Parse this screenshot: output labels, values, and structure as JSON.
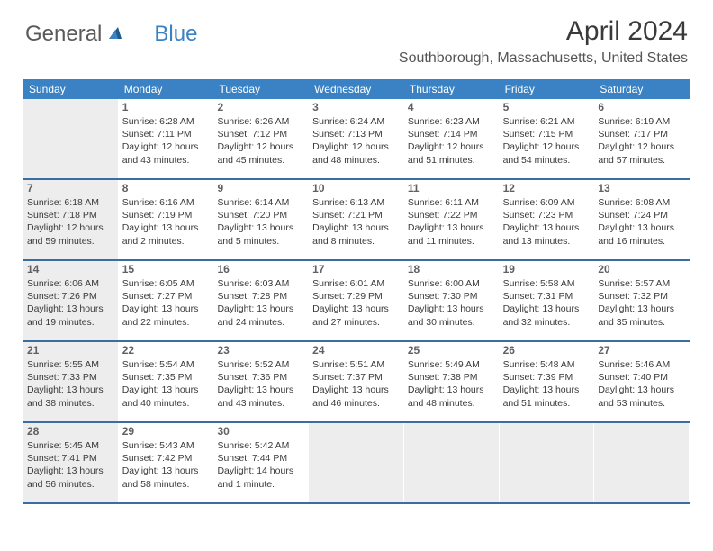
{
  "brand": {
    "general": "General",
    "blue": "Blue"
  },
  "title": "April 2024",
  "location": "Southborough, Massachusetts, United States",
  "colors": {
    "header_bg": "#3b82c4",
    "header_text": "#ffffff",
    "shaded_bg": "#ededed",
    "row_border": "#3b6ea0",
    "text": "#3a3a3a",
    "daynum": "#606060",
    "logo_gray": "#5a5a5a",
    "logo_blue": "#3b82c4"
  },
  "day_headers": [
    "Sunday",
    "Monday",
    "Tuesday",
    "Wednesday",
    "Thursday",
    "Friday",
    "Saturday"
  ],
  "weeks": [
    [
      {
        "num": "",
        "sunrise": "",
        "sunset": "",
        "daylight": "",
        "extra": "",
        "shaded": true
      },
      {
        "num": "1",
        "sunrise": "Sunrise: 6:28 AM",
        "sunset": "Sunset: 7:11 PM",
        "daylight": "Daylight: 12 hours",
        "extra": "and 43 minutes.",
        "shaded": false
      },
      {
        "num": "2",
        "sunrise": "Sunrise: 6:26 AM",
        "sunset": "Sunset: 7:12 PM",
        "daylight": "Daylight: 12 hours",
        "extra": "and 45 minutes.",
        "shaded": false
      },
      {
        "num": "3",
        "sunrise": "Sunrise: 6:24 AM",
        "sunset": "Sunset: 7:13 PM",
        "daylight": "Daylight: 12 hours",
        "extra": "and 48 minutes.",
        "shaded": false
      },
      {
        "num": "4",
        "sunrise": "Sunrise: 6:23 AM",
        "sunset": "Sunset: 7:14 PM",
        "daylight": "Daylight: 12 hours",
        "extra": "and 51 minutes.",
        "shaded": false
      },
      {
        "num": "5",
        "sunrise": "Sunrise: 6:21 AM",
        "sunset": "Sunset: 7:15 PM",
        "daylight": "Daylight: 12 hours",
        "extra": "and 54 minutes.",
        "shaded": false
      },
      {
        "num": "6",
        "sunrise": "Sunrise: 6:19 AM",
        "sunset": "Sunset: 7:17 PM",
        "daylight": "Daylight: 12 hours",
        "extra": "and 57 minutes.",
        "shaded": false
      }
    ],
    [
      {
        "num": "7",
        "sunrise": "Sunrise: 6:18 AM",
        "sunset": "Sunset: 7:18 PM",
        "daylight": "Daylight: 12 hours",
        "extra": "and 59 minutes.",
        "shaded": true
      },
      {
        "num": "8",
        "sunrise": "Sunrise: 6:16 AM",
        "sunset": "Sunset: 7:19 PM",
        "daylight": "Daylight: 13 hours",
        "extra": "and 2 minutes.",
        "shaded": false
      },
      {
        "num": "9",
        "sunrise": "Sunrise: 6:14 AM",
        "sunset": "Sunset: 7:20 PM",
        "daylight": "Daylight: 13 hours",
        "extra": "and 5 minutes.",
        "shaded": false
      },
      {
        "num": "10",
        "sunrise": "Sunrise: 6:13 AM",
        "sunset": "Sunset: 7:21 PM",
        "daylight": "Daylight: 13 hours",
        "extra": "and 8 minutes.",
        "shaded": false
      },
      {
        "num": "11",
        "sunrise": "Sunrise: 6:11 AM",
        "sunset": "Sunset: 7:22 PM",
        "daylight": "Daylight: 13 hours",
        "extra": "and 11 minutes.",
        "shaded": false
      },
      {
        "num": "12",
        "sunrise": "Sunrise: 6:09 AM",
        "sunset": "Sunset: 7:23 PM",
        "daylight": "Daylight: 13 hours",
        "extra": "and 13 minutes.",
        "shaded": false
      },
      {
        "num": "13",
        "sunrise": "Sunrise: 6:08 AM",
        "sunset": "Sunset: 7:24 PM",
        "daylight": "Daylight: 13 hours",
        "extra": "and 16 minutes.",
        "shaded": false
      }
    ],
    [
      {
        "num": "14",
        "sunrise": "Sunrise: 6:06 AM",
        "sunset": "Sunset: 7:26 PM",
        "daylight": "Daylight: 13 hours",
        "extra": "and 19 minutes.",
        "shaded": true
      },
      {
        "num": "15",
        "sunrise": "Sunrise: 6:05 AM",
        "sunset": "Sunset: 7:27 PM",
        "daylight": "Daylight: 13 hours",
        "extra": "and 22 minutes.",
        "shaded": false
      },
      {
        "num": "16",
        "sunrise": "Sunrise: 6:03 AM",
        "sunset": "Sunset: 7:28 PM",
        "daylight": "Daylight: 13 hours",
        "extra": "and 24 minutes.",
        "shaded": false
      },
      {
        "num": "17",
        "sunrise": "Sunrise: 6:01 AM",
        "sunset": "Sunset: 7:29 PM",
        "daylight": "Daylight: 13 hours",
        "extra": "and 27 minutes.",
        "shaded": false
      },
      {
        "num": "18",
        "sunrise": "Sunrise: 6:00 AM",
        "sunset": "Sunset: 7:30 PM",
        "daylight": "Daylight: 13 hours",
        "extra": "and 30 minutes.",
        "shaded": false
      },
      {
        "num": "19",
        "sunrise": "Sunrise: 5:58 AM",
        "sunset": "Sunset: 7:31 PM",
        "daylight": "Daylight: 13 hours",
        "extra": "and 32 minutes.",
        "shaded": false
      },
      {
        "num": "20",
        "sunrise": "Sunrise: 5:57 AM",
        "sunset": "Sunset: 7:32 PM",
        "daylight": "Daylight: 13 hours",
        "extra": "and 35 minutes.",
        "shaded": false
      }
    ],
    [
      {
        "num": "21",
        "sunrise": "Sunrise: 5:55 AM",
        "sunset": "Sunset: 7:33 PM",
        "daylight": "Daylight: 13 hours",
        "extra": "and 38 minutes.",
        "shaded": true
      },
      {
        "num": "22",
        "sunrise": "Sunrise: 5:54 AM",
        "sunset": "Sunset: 7:35 PM",
        "daylight": "Daylight: 13 hours",
        "extra": "and 40 minutes.",
        "shaded": false
      },
      {
        "num": "23",
        "sunrise": "Sunrise: 5:52 AM",
        "sunset": "Sunset: 7:36 PM",
        "daylight": "Daylight: 13 hours",
        "extra": "and 43 minutes.",
        "shaded": false
      },
      {
        "num": "24",
        "sunrise": "Sunrise: 5:51 AM",
        "sunset": "Sunset: 7:37 PM",
        "daylight": "Daylight: 13 hours",
        "extra": "and 46 minutes.",
        "shaded": false
      },
      {
        "num": "25",
        "sunrise": "Sunrise: 5:49 AM",
        "sunset": "Sunset: 7:38 PM",
        "daylight": "Daylight: 13 hours",
        "extra": "and 48 minutes.",
        "shaded": false
      },
      {
        "num": "26",
        "sunrise": "Sunrise: 5:48 AM",
        "sunset": "Sunset: 7:39 PM",
        "daylight": "Daylight: 13 hours",
        "extra": "and 51 minutes.",
        "shaded": false
      },
      {
        "num": "27",
        "sunrise": "Sunrise: 5:46 AM",
        "sunset": "Sunset: 7:40 PM",
        "daylight": "Daylight: 13 hours",
        "extra": "and 53 minutes.",
        "shaded": false
      }
    ],
    [
      {
        "num": "28",
        "sunrise": "Sunrise: 5:45 AM",
        "sunset": "Sunset: 7:41 PM",
        "daylight": "Daylight: 13 hours",
        "extra": "and 56 minutes.",
        "shaded": true
      },
      {
        "num": "29",
        "sunrise": "Sunrise: 5:43 AM",
        "sunset": "Sunset: 7:42 PM",
        "daylight": "Daylight: 13 hours",
        "extra": "and 58 minutes.",
        "shaded": false
      },
      {
        "num": "30",
        "sunrise": "Sunrise: 5:42 AM",
        "sunset": "Sunset: 7:44 PM",
        "daylight": "Daylight: 14 hours",
        "extra": "and 1 minute.",
        "shaded": false
      },
      {
        "num": "",
        "sunrise": "",
        "sunset": "",
        "daylight": "",
        "extra": "",
        "shaded": true
      },
      {
        "num": "",
        "sunrise": "",
        "sunset": "",
        "daylight": "",
        "extra": "",
        "shaded": true
      },
      {
        "num": "",
        "sunrise": "",
        "sunset": "",
        "daylight": "",
        "extra": "",
        "shaded": true
      },
      {
        "num": "",
        "sunrise": "",
        "sunset": "",
        "daylight": "",
        "extra": "",
        "shaded": true
      }
    ]
  ]
}
